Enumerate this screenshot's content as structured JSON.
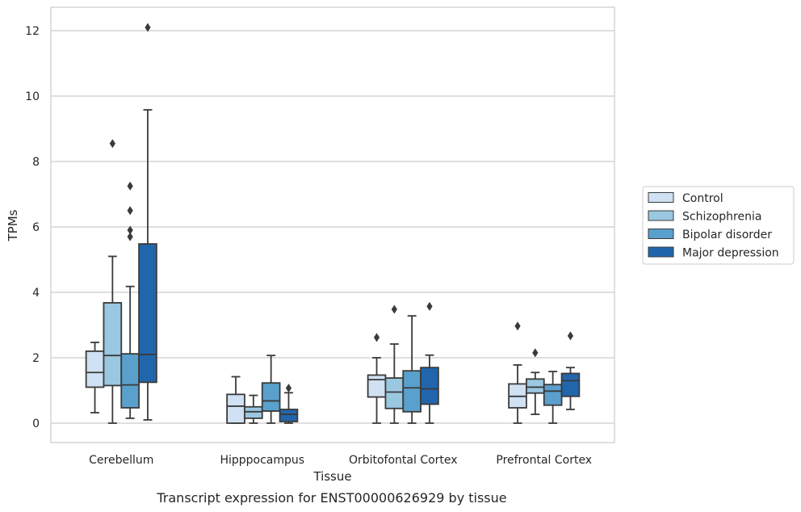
{
  "chart_data": {
    "type": "boxplot",
    "xlabel": "Tissue",
    "ylabel": "TPMs",
    "caption": "Transcript expression for ENST00000626929 by tissue",
    "categories": [
      "Cerebellum",
      "Hipppocampus",
      "Orbitofontal Cortex",
      "Prefrontal Cortex"
    ],
    "ylim": [
      -0.6,
      12.7
    ],
    "yticks": [
      0,
      2,
      4,
      6,
      8,
      10,
      12
    ],
    "grid": "horizontal",
    "legend_placement": "right",
    "series": [
      {
        "name": "Control",
        "color": "#cfe1f2",
        "boxes": [
          {
            "whislo": 0.32,
            "q1": 1.1,
            "med": 1.55,
            "q3": 2.2,
            "whishi": 2.47,
            "fliers": []
          },
          {
            "whislo": 0.0,
            "q1": 0.0,
            "med": 0.52,
            "q3": 0.88,
            "whishi": 1.42,
            "fliers": []
          },
          {
            "whislo": 0.0,
            "q1": 0.8,
            "med": 1.33,
            "q3": 1.47,
            "whishi": 2.0,
            "fliers": [
              2.62
            ]
          },
          {
            "whislo": 0.0,
            "q1": 0.47,
            "med": 0.82,
            "q3": 1.2,
            "whishi": 1.78,
            "fliers": [
              2.97
            ]
          }
        ]
      },
      {
        "name": "Schizophrenia",
        "color": "#9ac8e0",
        "boxes": [
          {
            "whislo": 0.0,
            "q1": 1.15,
            "med": 2.07,
            "q3": 3.68,
            "whishi": 5.1,
            "fliers": [
              8.55
            ]
          },
          {
            "whislo": 0.0,
            "q1": 0.15,
            "med": 0.35,
            "q3": 0.5,
            "whishi": 0.85,
            "fliers": []
          },
          {
            "whislo": 0.0,
            "q1": 0.45,
            "med": 0.95,
            "q3": 1.38,
            "whishi": 2.42,
            "fliers": [
              3.48
            ]
          },
          {
            "whislo": 0.27,
            "q1": 0.92,
            "med": 1.1,
            "q3": 1.35,
            "whishi": 1.55,
            "fliers": [
              2.15
            ]
          }
        ]
      },
      {
        "name": "Bipolar disorder",
        "color": "#5aa0cd",
        "boxes": [
          {
            "whislo": 0.15,
            "q1": 0.47,
            "med": 1.17,
            "q3": 2.12,
            "whishi": 4.18,
            "fliers": [
              5.9,
              5.7,
              6.5,
              7.25
            ]
          },
          {
            "whislo": 0.0,
            "q1": 0.37,
            "med": 0.68,
            "q3": 1.23,
            "whishi": 2.07,
            "fliers": []
          },
          {
            "whislo": 0.0,
            "q1": 0.35,
            "med": 1.08,
            "q3": 1.6,
            "whishi": 3.28,
            "fliers": []
          },
          {
            "whislo": 0.0,
            "q1": 0.55,
            "med": 0.98,
            "q3": 1.18,
            "whishi": 1.58,
            "fliers": []
          }
        ]
      },
      {
        "name": "Major depression",
        "color": "#2166ac",
        "boxes": [
          {
            "whislo": 0.1,
            "q1": 1.25,
            "med": 2.1,
            "q3": 5.48,
            "whishi": 9.58,
            "fliers": [
              12.1
            ]
          },
          {
            "whislo": 0.0,
            "q1": 0.05,
            "med": 0.27,
            "q3": 0.42,
            "whishi": 0.93,
            "fliers": [
              1.07
            ]
          },
          {
            "whislo": 0.0,
            "q1": 0.58,
            "med": 1.05,
            "q3": 1.7,
            "whishi": 2.08,
            "fliers": [
              3.57
            ]
          },
          {
            "whislo": 0.42,
            "q1": 0.82,
            "med": 1.3,
            "q3": 1.52,
            "whishi": 1.7,
            "fliers": [
              2.67
            ]
          }
        ]
      }
    ]
  }
}
